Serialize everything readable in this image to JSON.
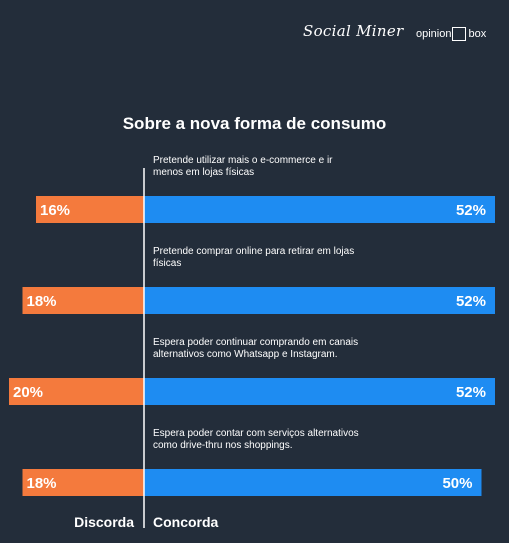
{
  "brand": {
    "social_miner": "Social Miner",
    "opinion_box_left": "opinion",
    "opinion_box_right": "box"
  },
  "chart_data": {
    "type": "bar",
    "title": "Sobre a nova forma de consumo",
    "categories": [
      "Pretende utilizar mais o e-commerce e ir menos em lojas físicas",
      "Pretende comprar online para retirar em lojas físicas",
      "Espera poder continuar comprando em canais alternativos como Whatsapp e Instagram.",
      "Espera poder contar com serviços alternativos como drive-thru nos shoppings."
    ],
    "category_lines": [
      [
        "Pretende utilizar mais o e-commerce e ir",
        "menos em lojas físicas"
      ],
      [
        "Pretende comprar online para retirar em lojas",
        "físicas"
      ],
      [
        "Espera poder continuar comprando em canais",
        "alternativos como Whatsapp e Instagram."
      ],
      [
        "Espera poder contar com serviços alternativos",
        "como drive-thru nos shoppings."
      ]
    ],
    "series": [
      {
        "name": "Discorda",
        "values": [
          16,
          18,
          20,
          18
        ],
        "labels": [
          "16%",
          "18%",
          "20%",
          "18%"
        ],
        "color": "#f47a3d"
      },
      {
        "name": "Concorda",
        "values": [
          52,
          52,
          52,
          50
        ],
        "labels": [
          "52%",
          "52%",
          "52%",
          "50%"
        ],
        "color": "#1e8cf2"
      }
    ],
    "unit": "%",
    "orientation": "diverging-horizontal",
    "colors": {
      "background": "#232d3a",
      "divider": "#ffffff",
      "text": "#ffffff"
    }
  }
}
